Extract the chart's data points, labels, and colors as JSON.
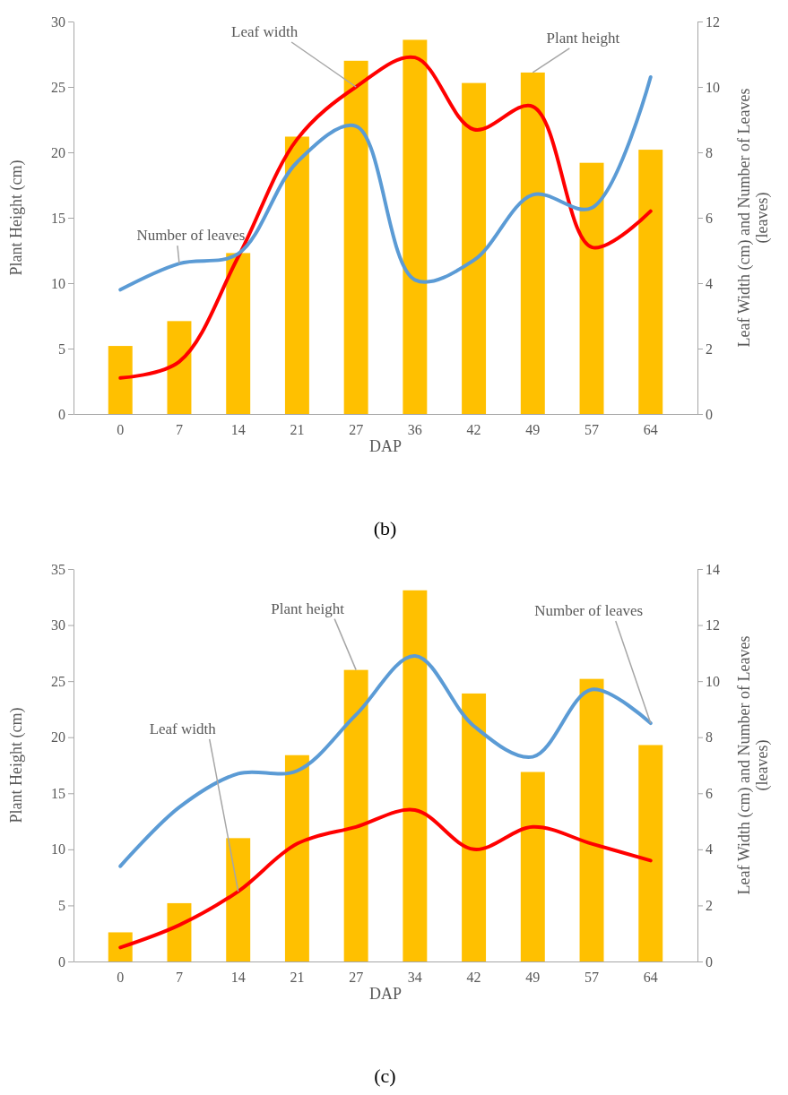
{
  "chart_data": [
    {
      "type": "bar",
      "xlabel": "DAP",
      "ylabel": "Plant Height (cm)",
      "y2label": "Leaf Width (cm) and Number of Leaves (leaves)",
      "categories": [
        "0",
        "7",
        "14",
        "21",
        "27",
        "36",
        "42",
        "49",
        "57",
        "64"
      ],
      "ylim": [
        0,
        30
      ],
      "yticks": [
        0,
        5,
        10,
        15,
        20,
        25,
        30
      ],
      "y2lim": [
        0,
        12
      ],
      "y2ticks": [
        0,
        2,
        4,
        6,
        8,
        10,
        12
      ],
      "legend": false,
      "grid": false,
      "annotations": [
        "(b)"
      ],
      "series": [
        {
          "name": "Plant height",
          "color": "#ffc000",
          "values": [
            5.2,
            7.1,
            12.3,
            21.2,
            27.0,
            28.6,
            25.3,
            26.1,
            19.2,
            20.2
          ]
        },
        {
          "name": "Leaf width",
          "type": "line",
          "axis": "y2",
          "color": "#ff0000",
          "values": [
            1.1,
            1.6,
            4.8,
            8.4,
            10.0,
            10.9,
            8.7,
            9.4,
            5.1,
            6.2
          ]
        },
        {
          "name": "Number of leaves",
          "type": "line",
          "axis": "y2",
          "color": "#5b9bd5",
          "values": [
            3.8,
            4.6,
            4.9,
            7.7,
            8.8,
            4.1,
            4.7,
            6.7,
            6.3,
            10.3
          ]
        }
      ]
    },
    {
      "type": "bar",
      "xlabel": "DAP",
      "ylabel": "Plant Height (cm)",
      "y2label": "Leaf Width (cm) and Number of Leaves (leaves)",
      "categories": [
        "0",
        "7",
        "14",
        "21",
        "27",
        "34",
        "42",
        "49",
        "57",
        "64"
      ],
      "ylim": [
        0,
        35
      ],
      "yticks": [
        0,
        5,
        10,
        15,
        20,
        25,
        30,
        35
      ],
      "y2lim": [
        0,
        14
      ],
      "y2ticks": [
        0,
        2,
        4,
        6,
        8,
        10,
        12,
        14
      ],
      "legend": false,
      "grid": false,
      "annotations": [
        "(c)"
      ],
      "series": [
        {
          "name": "Plant height",
          "color": "#ffc000",
          "values": [
            2.6,
            5.2,
            11.0,
            18.4,
            26.0,
            33.1,
            23.9,
            16.9,
            25.2,
            19.3
          ]
        },
        {
          "name": "Leaf width",
          "type": "line",
          "axis": "y2",
          "color": "#ff0000",
          "values": [
            0.5,
            1.3,
            2.5,
            4.2,
            4.8,
            5.4,
            4.0,
            4.8,
            4.2,
            3.6
          ]
        },
        {
          "name": "Number of leaves",
          "type": "line",
          "axis": "y2",
          "color": "#5b9bd5",
          "values": [
            3.4,
            5.5,
            6.7,
            6.8,
            8.8,
            10.9,
            8.4,
            7.3,
            9.7,
            8.5
          ]
        }
      ]
    }
  ]
}
